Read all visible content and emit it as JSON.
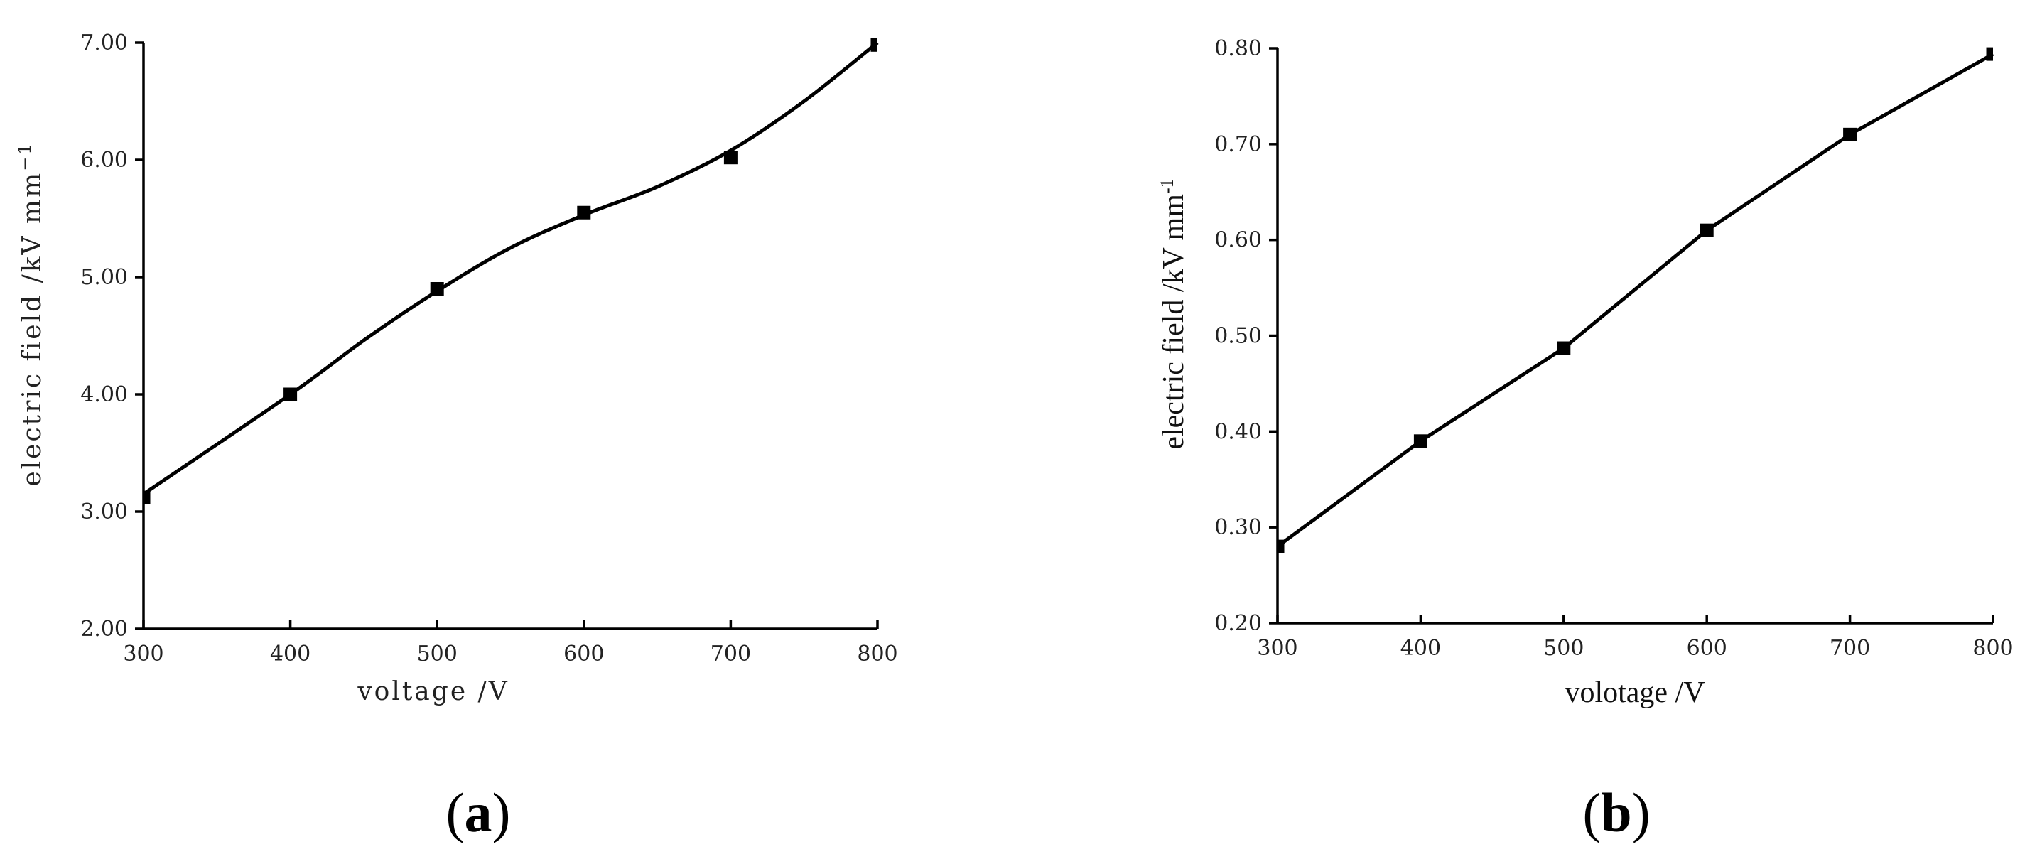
{
  "chart_data": [
    {
      "panel": "(a)",
      "panel_letter": "a",
      "type": "line",
      "xlabel": "voltage /V",
      "ylabel": "electric field /kV mm",
      "ylabel_exponent": "−1",
      "xlim": [
        300,
        800
      ],
      "ylim": [
        2.0,
        7.0
      ],
      "x_ticks": [
        "300",
        "400",
        "500",
        "600",
        "700",
        "800"
      ],
      "y_ticks": [
        "2.00",
        "3.00",
        "4.00",
        "5.00",
        "6.00",
        "7.00"
      ],
      "grid": false,
      "series": [
        {
          "x": [
            300,
            400,
            500,
            600,
            700,
            800
          ],
          "y": [
            3.12,
            4.0,
            4.9,
            5.55,
            6.02,
            6.98
          ]
        }
      ],
      "fit_curve": [
        [
          300,
          3.15
        ],
        [
          400,
          4.0
        ],
        [
          450,
          4.46
        ],
        [
          500,
          4.88
        ],
        [
          550,
          5.25
        ],
        [
          600,
          5.53
        ],
        [
          650,
          5.77
        ],
        [
          700,
          6.08
        ],
        [
          750,
          6.5
        ],
        [
          800,
          7.0
        ]
      ]
    },
    {
      "panel": "(b)",
      "panel_letter": "b",
      "type": "line",
      "xlabel": "volotage /V",
      "ylabel": "electric field /kV mm",
      "ylabel_exponent": "-1",
      "xlim": [
        300,
        800
      ],
      "ylim": [
        0.2,
        0.8
      ],
      "x_ticks": [
        "300",
        "400",
        "500",
        "600",
        "700",
        "800"
      ],
      "y_ticks": [
        "0.20",
        "0.30",
        "0.40",
        "0.50",
        "0.60",
        "0.70",
        "0.80"
      ],
      "grid": false,
      "series": [
        {
          "x": [
            300,
            400,
            500,
            600,
            700,
            800
          ],
          "y": [
            0.28,
            0.39,
            0.487,
            0.61,
            0.71,
            0.794
          ]
        }
      ]
    }
  ]
}
